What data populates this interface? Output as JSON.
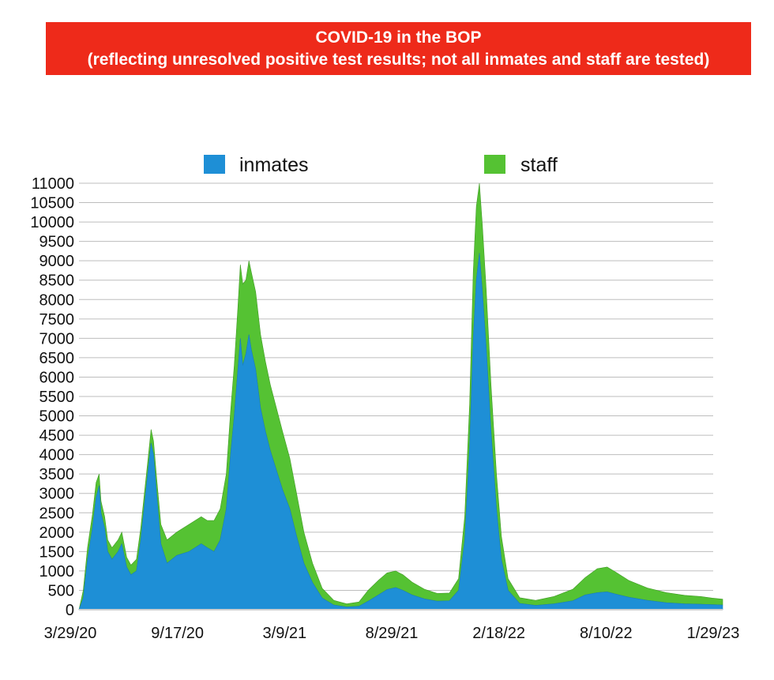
{
  "title": {
    "line1": "COVID-19 in the BOP",
    "line2": "(reflecting unresolved positive test results; not all inmates and staff are tested)"
  },
  "colors": {
    "banner": "#ee2a1a",
    "inmates": "#1e8fd6",
    "staff": "#55c233",
    "grid": "#bdbdbd"
  },
  "chart_data": {
    "type": "area",
    "stacked": true,
    "grid": true,
    "legend_position": "top",
    "x_ticks": [
      "3/29/20",
      "9/17/20",
      "3/9/21",
      "8/29/21",
      "2/18/22",
      "8/10/22",
      "1/29/23"
    ],
    "x_range": [
      "2020-03-29",
      "2023-02-15"
    ],
    "ylim": [
      0,
      11000
    ],
    "y_ticks": [
      0,
      500,
      1000,
      1500,
      2000,
      2500,
      3000,
      3500,
      4000,
      4500,
      5000,
      5500,
      6000,
      6500,
      7000,
      7500,
      8000,
      8500,
      9000,
      9500,
      10000,
      10500,
      11000
    ],
    "series": [
      {
        "name": "inmates",
        "color": "#1e8fd6",
        "points": [
          [
            "2020-03-29",
            0
          ],
          [
            "2020-04-05",
            300
          ],
          [
            "2020-04-12",
            1300
          ],
          [
            "2020-04-20",
            2100
          ],
          [
            "2020-04-26",
            2900
          ],
          [
            "2020-05-01",
            3200
          ],
          [
            "2020-05-04",
            2500
          ],
          [
            "2020-05-10",
            2100
          ],
          [
            "2020-05-15",
            1500
          ],
          [
            "2020-05-22",
            1300
          ],
          [
            "2020-06-01",
            1500
          ],
          [
            "2020-06-07",
            1700
          ],
          [
            "2020-06-15",
            1100
          ],
          [
            "2020-06-22",
            900
          ],
          [
            "2020-07-01",
            1000
          ],
          [
            "2020-07-08",
            1800
          ],
          [
            "2020-07-14",
            2700
          ],
          [
            "2020-07-20",
            3600
          ],
          [
            "2020-07-25",
            4300
          ],
          [
            "2020-07-29",
            4000
          ],
          [
            "2020-08-03",
            3000
          ],
          [
            "2020-08-10",
            1700
          ],
          [
            "2020-08-20",
            1200
          ],
          [
            "2020-09-05",
            1400
          ],
          [
            "2020-09-25",
            1500
          ],
          [
            "2020-10-15",
            1700
          ],
          [
            "2020-10-25",
            1600
          ],
          [
            "2020-11-05",
            1500
          ],
          [
            "2020-11-15",
            1800
          ],
          [
            "2020-11-25",
            2600
          ],
          [
            "2020-12-02",
            4000
          ],
          [
            "2020-12-08",
            5000
          ],
          [
            "2020-12-14",
            6200
          ],
          [
            "2020-12-18",
            7000
          ],
          [
            "2020-12-22",
            6300
          ],
          [
            "2020-12-27",
            6600
          ],
          [
            "2021-01-01",
            7100
          ],
          [
            "2021-01-05",
            6700
          ],
          [
            "2021-01-12",
            6200
          ],
          [
            "2021-01-20",
            5200
          ],
          [
            "2021-01-28",
            4600
          ],
          [
            "2021-02-05",
            4100
          ],
          [
            "2021-02-15",
            3600
          ],
          [
            "2021-02-25",
            3100
          ],
          [
            "2021-03-09",
            2600
          ],
          [
            "2021-03-20",
            1900
          ],
          [
            "2021-04-01",
            1200
          ],
          [
            "2021-04-15",
            700
          ],
          [
            "2021-05-01",
            300
          ],
          [
            "2021-05-20",
            120
          ],
          [
            "2021-06-10",
            70
          ],
          [
            "2021-06-30",
            90
          ],
          [
            "2021-07-15",
            220
          ],
          [
            "2021-08-01",
            380
          ],
          [
            "2021-08-15",
            520
          ],
          [
            "2021-08-29",
            570
          ],
          [
            "2021-09-10",
            500
          ],
          [
            "2021-09-25",
            380
          ],
          [
            "2021-10-15",
            280
          ],
          [
            "2021-11-05",
            220
          ],
          [
            "2021-11-25",
            230
          ],
          [
            "2021-12-10",
            500
          ],
          [
            "2021-12-20",
            1800
          ],
          [
            "2021-12-28",
            4200
          ],
          [
            "2022-01-03",
            7000
          ],
          [
            "2022-01-08",
            8500
          ],
          [
            "2022-01-13",
            9200
          ],
          [
            "2022-01-18",
            8200
          ],
          [
            "2022-01-24",
            6800
          ],
          [
            "2022-02-01",
            4600
          ],
          [
            "2022-02-10",
            2600
          ],
          [
            "2022-02-18",
            1300
          ],
          [
            "2022-03-01",
            500
          ],
          [
            "2022-03-20",
            160
          ],
          [
            "2022-04-15",
            110
          ],
          [
            "2022-05-15",
            150
          ],
          [
            "2022-06-15",
            230
          ],
          [
            "2022-07-05",
            380
          ],
          [
            "2022-07-25",
            440
          ],
          [
            "2022-08-10",
            460
          ],
          [
            "2022-08-25",
            400
          ],
          [
            "2022-09-15",
            320
          ],
          [
            "2022-10-15",
            240
          ],
          [
            "2022-11-15",
            180
          ],
          [
            "2022-12-15",
            150
          ],
          [
            "2023-01-10",
            140
          ],
          [
            "2023-01-29",
            130
          ],
          [
            "2023-02-15",
            120
          ]
        ]
      },
      {
        "name": "staff",
        "color": "#55c233",
        "points": [
          [
            "2020-03-29",
            0
          ],
          [
            "2020-04-05",
            200
          ],
          [
            "2020-04-12",
            300
          ],
          [
            "2020-04-20",
            350
          ],
          [
            "2020-04-26",
            380
          ],
          [
            "2020-05-01",
            300
          ],
          [
            "2020-05-04",
            300
          ],
          [
            "2020-05-10",
            300
          ],
          [
            "2020-05-15",
            300
          ],
          [
            "2020-05-22",
            300
          ],
          [
            "2020-06-01",
            300
          ],
          [
            "2020-06-07",
            300
          ],
          [
            "2020-06-15",
            250
          ],
          [
            "2020-06-22",
            250
          ],
          [
            "2020-07-01",
            300
          ],
          [
            "2020-07-08",
            300
          ],
          [
            "2020-07-14",
            300
          ],
          [
            "2020-07-20",
            300
          ],
          [
            "2020-07-25",
            350
          ],
          [
            "2020-07-29",
            350
          ],
          [
            "2020-08-03",
            400
          ],
          [
            "2020-08-10",
            500
          ],
          [
            "2020-08-20",
            600
          ],
          [
            "2020-09-05",
            600
          ],
          [
            "2020-09-25",
            700
          ],
          [
            "2020-10-15",
            700
          ],
          [
            "2020-10-25",
            700
          ],
          [
            "2020-11-05",
            800
          ],
          [
            "2020-11-15",
            800
          ],
          [
            "2020-11-25",
            900
          ],
          [
            "2020-12-02",
            1100
          ],
          [
            "2020-12-08",
            1300
          ],
          [
            "2020-12-14",
            1600
          ],
          [
            "2020-12-18",
            1900
          ],
          [
            "2020-12-22",
            2100
          ],
          [
            "2020-12-27",
            1900
          ],
          [
            "2021-01-01",
            1900
          ],
          [
            "2021-01-05",
            2000
          ],
          [
            "2021-01-12",
            2000
          ],
          [
            "2021-01-20",
            1900
          ],
          [
            "2021-01-28",
            1800
          ],
          [
            "2021-02-05",
            1700
          ],
          [
            "2021-02-15",
            1600
          ],
          [
            "2021-02-25",
            1500
          ],
          [
            "2021-03-09",
            1300
          ],
          [
            "2021-03-20",
            1100
          ],
          [
            "2021-04-01",
            800
          ],
          [
            "2021-04-15",
            500
          ],
          [
            "2021-05-01",
            250
          ],
          [
            "2021-05-20",
            120
          ],
          [
            "2021-06-10",
            80
          ],
          [
            "2021-06-30",
            110
          ],
          [
            "2021-07-15",
            280
          ],
          [
            "2021-08-01",
            380
          ],
          [
            "2021-08-15",
            430
          ],
          [
            "2021-08-29",
            430
          ],
          [
            "2021-09-10",
            400
          ],
          [
            "2021-09-25",
            330
          ],
          [
            "2021-10-15",
            250
          ],
          [
            "2021-11-05",
            200
          ],
          [
            "2021-11-25",
            200
          ],
          [
            "2021-12-10",
            300
          ],
          [
            "2021-12-20",
            600
          ],
          [
            "2021-12-28",
            1100
          ],
          [
            "2022-01-03",
            1700
          ],
          [
            "2022-01-08",
            1900
          ],
          [
            "2022-01-13",
            1800
          ],
          [
            "2022-01-18",
            1700
          ],
          [
            "2022-01-24",
            1500
          ],
          [
            "2022-02-01",
            1200
          ],
          [
            "2022-02-10",
            900
          ],
          [
            "2022-02-18",
            600
          ],
          [
            "2022-03-01",
            300
          ],
          [
            "2022-03-20",
            150
          ],
          [
            "2022-04-15",
            130
          ],
          [
            "2022-05-15",
            190
          ],
          [
            "2022-06-15",
            300
          ],
          [
            "2022-07-05",
            450
          ],
          [
            "2022-07-25",
            620
          ],
          [
            "2022-08-10",
            640
          ],
          [
            "2022-08-25",
            560
          ],
          [
            "2022-09-15",
            430
          ],
          [
            "2022-10-15",
            320
          ],
          [
            "2022-11-15",
            260
          ],
          [
            "2022-12-15",
            220
          ],
          [
            "2023-01-10",
            200
          ],
          [
            "2023-01-29",
            170
          ],
          [
            "2023-02-15",
            150
          ]
        ]
      }
    ]
  }
}
